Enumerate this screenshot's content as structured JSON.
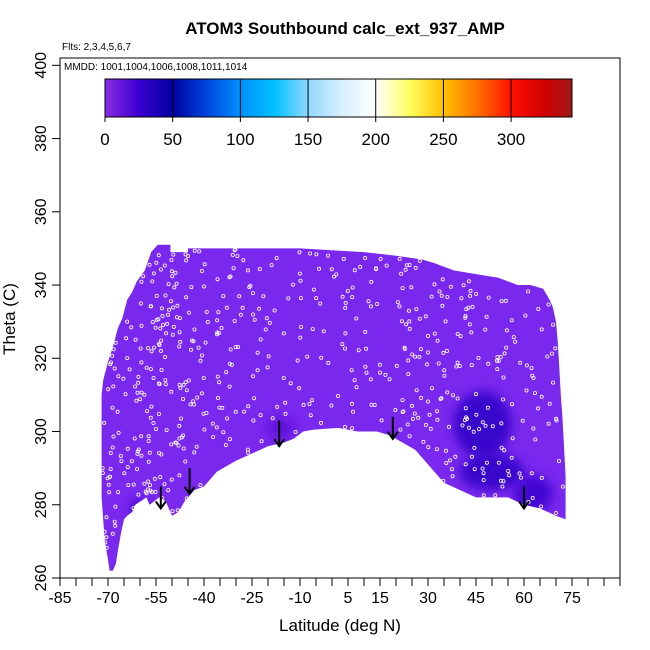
{
  "chart_data": {
    "type": "heatmap",
    "title": "ATOM3 Southbound calc_ext_937_AMP",
    "annotations": {
      "flights": "Flts: 2,3,4,5,6,7",
      "mmdd": "MMDD: 1001,1004,1006,1008,1011,1014"
    },
    "xlabel": "Latitude (deg N)",
    "ylabel": "Theta (C)",
    "xlim": [
      -85,
      90
    ],
    "ylim": [
      260,
      402
    ],
    "x_ticks": [
      -85,
      -70,
      -55,
      -40,
      -25,
      -10,
      5,
      15,
      30,
      45,
      60,
      75
    ],
    "x_tick_labels": [
      "-85",
      "-70",
      "-55",
      "-40",
      "-25",
      "-10",
      "5",
      "15",
      "30",
      "45",
      "60",
      "75"
    ],
    "x_minor_ticks": [
      -80,
      -75,
      -65,
      -60,
      -50,
      -45,
      -35,
      -30,
      -20,
      -15,
      -5,
      0,
      10,
      20,
      25,
      35,
      40,
      50,
      55,
      65,
      70,
      80,
      85,
      90
    ],
    "y_ticks": [
      260,
      280,
      300,
      320,
      340,
      360,
      380,
      400
    ],
    "y_tick_labels": [
      "260",
      "280",
      "300",
      "320",
      "340",
      "360",
      "380",
      "400"
    ],
    "colorbar": {
      "range": [
        0,
        345
      ],
      "ticks": [
        0,
        50,
        100,
        150,
        200,
        250,
        300
      ],
      "tick_labels": [
        "0",
        "50",
        "100",
        "150",
        "200",
        "250",
        "300"
      ],
      "stops": [
        {
          "value": 0,
          "color": "#8a2be2"
        },
        {
          "value": 25,
          "color": "#3b00d0"
        },
        {
          "value": 50,
          "color": "#0000a0"
        },
        {
          "value": 75,
          "color": "#0044dd"
        },
        {
          "value": 100,
          "color": "#0090ff"
        },
        {
          "value": 125,
          "color": "#00c0ff"
        },
        {
          "value": 150,
          "color": "#90d8ff"
        },
        {
          "value": 175,
          "color": "#d8f0ff"
        },
        {
          "value": 200,
          "color": "#ffffff"
        },
        {
          "value": 225,
          "color": "#ffff60"
        },
        {
          "value": 250,
          "color": "#ffc000"
        },
        {
          "value": 275,
          "color": "#ff7000"
        },
        {
          "value": 300,
          "color": "#ff1000"
        },
        {
          "value": 325,
          "color": "#d00000"
        },
        {
          "value": 345,
          "color": "#a01818"
        }
      ]
    },
    "field_color": "#7a28ee",
    "field_boundary_top": [
      [
        -72,
        302
      ],
      [
        -72,
        310
      ],
      [
        -71.5,
        314
      ],
      [
        -70,
        319
      ],
      [
        -68.5,
        323
      ],
      [
        -67,
        328
      ],
      [
        -65.5,
        331
      ],
      [
        -64,
        336
      ],
      [
        -62.5,
        338
      ],
      [
        -61,
        341
      ],
      [
        -58.5,
        344
      ],
      [
        -56.5,
        349
      ],
      [
        -54.5,
        351
      ],
      [
        -50.5,
        351
      ],
      [
        -50.5,
        349
      ],
      [
        -45,
        349
      ],
      [
        -45,
        350
      ],
      [
        -10,
        350
      ],
      [
        0,
        349.5
      ],
      [
        10,
        349
      ],
      [
        20,
        348
      ],
      [
        28,
        347
      ],
      [
        32,
        346
      ],
      [
        38,
        344
      ],
      [
        45,
        343
      ],
      [
        52,
        342
      ],
      [
        55,
        341
      ],
      [
        58,
        340
      ],
      [
        62,
        340
      ],
      [
        66,
        339
      ],
      [
        68,
        336
      ],
      [
        69,
        334
      ],
      [
        70,
        330
      ],
      [
        70.5,
        325
      ],
      [
        71,
        318
      ],
      [
        71.5,
        310
      ],
      [
        72,
        304
      ],
      [
        72.5,
        296
      ],
      [
        73,
        288
      ],
      [
        73,
        276
      ]
    ],
    "field_boundary_bottom": [
      [
        73,
        276
      ],
      [
        70,
        277
      ],
      [
        65,
        279
      ],
      [
        60,
        280
      ],
      [
        55,
        282
      ],
      [
        50,
        282
      ],
      [
        45,
        282
      ],
      [
        40,
        284
      ],
      [
        35,
        286
      ],
      [
        32,
        289
      ],
      [
        29,
        292
      ],
      [
        26,
        295
      ],
      [
        22,
        297
      ],
      [
        18,
        299
      ],
      [
        14,
        300
      ],
      [
        8,
        300
      ],
      [
        2,
        301
      ],
      [
        -6,
        300.5
      ],
      [
        -9,
        300
      ],
      [
        -12,
        298
      ],
      [
        -15,
        297
      ],
      [
        -20,
        296
      ],
      [
        -25,
        294
      ],
      [
        -30,
        292
      ],
      [
        -36,
        289
      ],
      [
        -40,
        285
      ],
      [
        -43,
        284
      ],
      [
        -46,
        281
      ],
      [
        -48,
        278
      ],
      [
        -50,
        277
      ],
      [
        -52,
        281
      ],
      [
        -54,
        282
      ],
      [
        -55.5,
        281
      ],
      [
        -57,
        280
      ],
      [
        -58,
        282
      ],
      [
        -61.5,
        280
      ],
      [
        -62.5,
        278
      ],
      [
        -64,
        277
      ],
      [
        -65,
        276
      ],
      [
        -66,
        272
      ],
      [
        -67,
        267
      ],
      [
        -67.5,
        264
      ],
      [
        -68.5,
        262
      ],
      [
        -69.5,
        262
      ],
      [
        -70,
        265
      ],
      [
        -71,
        270
      ],
      [
        -71.5,
        276
      ],
      [
        -72,
        282
      ],
      [
        -72,
        302
      ]
    ],
    "dark_regions": [
      {
        "lat": 47,
        "theta": 302,
        "r_lat": 9,
        "r_theta": 9,
        "value": 30
      },
      {
        "lat": 50,
        "theta": 289,
        "r_lat": 10,
        "r_theta": 5,
        "value": 30
      },
      {
        "lat": 63,
        "theta": 283,
        "r_lat": 6,
        "r_theta": 5,
        "value": 25
      },
      {
        "lat": -60,
        "theta": 279,
        "r_lat": 3,
        "r_theta": 2.5,
        "value": 25
      },
      {
        "lat": -16,
        "theta": 301,
        "r_lat": 4,
        "r_theta": 3,
        "value": 15
      }
    ],
    "arrows": [
      {
        "lat": -53.5,
        "theta_top": 285,
        "theta_bottom": 279
      },
      {
        "lat": -44.5,
        "theta_top": 290,
        "theta_bottom": 283
      },
      {
        "lat": -16.5,
        "theta_top": 303,
        "theta_bottom": 296
      },
      {
        "lat": 19,
        "theta_top": 304,
        "theta_bottom": 298
      },
      {
        "lat": 60,
        "theta_top": 285,
        "theta_bottom": 279
      }
    ],
    "point_count": 560
  }
}
